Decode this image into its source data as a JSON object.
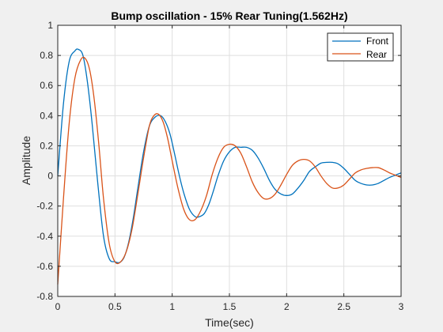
{
  "chart_data": {
    "type": "line",
    "title": "Bump oscillation - 15% Rear Tuning(1.562Hz)",
    "xlabel": "Time(sec)",
    "ylabel": "Amplitude",
    "xlim": [
      0,
      3
    ],
    "ylim": [
      -0.8,
      1
    ],
    "xticks": [
      0,
      0.5,
      1,
      1.5,
      2,
      2.5,
      3
    ],
    "xtick_labels": [
      "0",
      "0.5",
      "1",
      "1.5",
      "2",
      "2.5",
      "3"
    ],
    "yticks": [
      -0.8,
      -0.6,
      -0.4,
      -0.2,
      0,
      0.2,
      0.4,
      0.6,
      0.8,
      1
    ],
    "ytick_labels": [
      "-0.8",
      "-0.6",
      "-0.4",
      "-0.2",
      "0",
      "0.2",
      "0.4",
      "0.6",
      "0.8",
      "1"
    ],
    "grid": true,
    "legend_position": "top-right",
    "series": [
      {
        "name": "Front",
        "color": "#0072bd",
        "x": [
          0,
          0.05,
          0.1,
          0.15,
          0.18,
          0.22,
          0.26,
          0.3,
          0.35,
          0.4,
          0.45,
          0.5,
          0.54,
          0.58,
          0.62,
          0.66,
          0.7,
          0.75,
          0.8,
          0.85,
          0.9,
          0.94,
          0.98,
          1.02,
          1.06,
          1.1,
          1.15,
          1.2,
          1.24,
          1.28,
          1.32,
          1.36,
          1.4,
          1.45,
          1.5,
          1.55,
          1.6,
          1.65,
          1.7,
          1.75,
          1.8,
          1.85,
          1.9,
          1.95,
          2.0,
          2.05,
          2.1,
          2.15,
          2.2,
          2.25,
          2.3,
          2.35,
          2.4,
          2.45,
          2.5,
          2.55,
          2.6,
          2.65,
          2.7,
          2.75,
          2.8,
          2.85,
          2.9,
          2.95,
          3.0
        ],
        "y": [
          0,
          0.48,
          0.76,
          0.83,
          0.84,
          0.8,
          0.62,
          0.35,
          -0.05,
          -0.4,
          -0.55,
          -0.57,
          -0.575,
          -0.54,
          -0.44,
          -0.28,
          -0.08,
          0.16,
          0.33,
          0.39,
          0.4,
          0.36,
          0.28,
          0.15,
          0.01,
          -0.11,
          -0.22,
          -0.27,
          -0.27,
          -0.25,
          -0.19,
          -0.1,
          0.0,
          0.1,
          0.16,
          0.19,
          0.19,
          0.19,
          0.17,
          0.12,
          0.05,
          -0.03,
          -0.09,
          -0.12,
          -0.13,
          -0.12,
          -0.08,
          -0.03,
          0.03,
          0.06,
          0.085,
          0.09,
          0.09,
          0.08,
          0.05,
          0.01,
          -0.03,
          -0.05,
          -0.06,
          -0.06,
          -0.05,
          -0.03,
          -0.01,
          0.005,
          0.02
        ]
      },
      {
        "name": "Rear",
        "color": "#d95319",
        "x": [
          0,
          0.05,
          0.1,
          0.15,
          0.2,
          0.24,
          0.28,
          0.32,
          0.36,
          0.4,
          0.45,
          0.5,
          0.55,
          0.6,
          0.65,
          0.7,
          0.75,
          0.8,
          0.84,
          0.88,
          0.92,
          0.96,
          1.0,
          1.05,
          1.1,
          1.15,
          1.2,
          1.25,
          1.3,
          1.35,
          1.4,
          1.45,
          1.5,
          1.55,
          1.6,
          1.65,
          1.7,
          1.75,
          1.8,
          1.85,
          1.9,
          1.95,
          2.0,
          2.05,
          2.1,
          2.15,
          2.2,
          2.25,
          2.3,
          2.35,
          2.4,
          2.45,
          2.5,
          2.55,
          2.6,
          2.65,
          2.7,
          2.75,
          2.8,
          2.85,
          2.9,
          2.95,
          3.0
        ],
        "y": [
          -0.72,
          -0.15,
          0.35,
          0.65,
          0.77,
          0.78,
          0.7,
          0.5,
          0.2,
          -0.15,
          -0.45,
          -0.57,
          -0.57,
          -0.5,
          -0.35,
          -0.12,
          0.12,
          0.33,
          0.4,
          0.41,
          0.36,
          0.25,
          0.1,
          -0.08,
          -0.22,
          -0.29,
          -0.29,
          -0.23,
          -0.13,
          0.01,
          0.12,
          0.19,
          0.21,
          0.2,
          0.15,
          0.06,
          -0.04,
          -0.11,
          -0.15,
          -0.15,
          -0.12,
          -0.06,
          0.01,
          0.07,
          0.1,
          0.11,
          0.1,
          0.06,
          0.0,
          -0.05,
          -0.08,
          -0.08,
          -0.06,
          -0.02,
          0.02,
          0.04,
          0.05,
          0.055,
          0.055,
          0.04,
          0.02,
          0.005,
          -0.01
        ]
      }
    ]
  }
}
